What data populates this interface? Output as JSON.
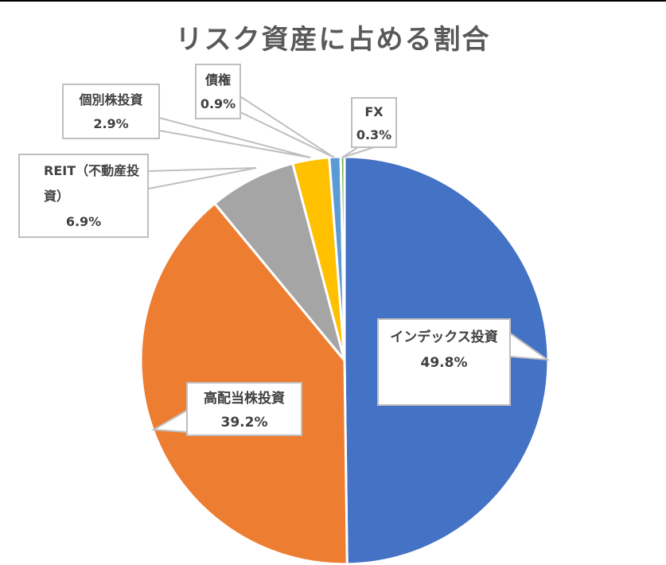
{
  "chart_data": {
    "type": "pie",
    "title": "リスク資産に占める割合",
    "start_angle": "12 o'clock",
    "direction": "clockwise",
    "categories": [
      "インデックス投資",
      "高配当株投資",
      "REIT（不動産投資）",
      "個別株投資",
      "債権",
      "FX"
    ],
    "values": [
      49.8,
      39.2,
      6.9,
      2.9,
      0.9,
      0.3
    ],
    "value_labels": [
      "49.8%",
      "39.2%",
      "6.9%",
      "2.9%",
      "0.9%",
      "0.3%"
    ],
    "colors": [
      "#4472C4",
      "#ED7D31",
      "#A5A5A5",
      "#FFC000",
      "#5B9BD5",
      "#70AD47"
    ],
    "legend": "none",
    "data_labels": "callouts with category name and percentage"
  },
  "labels": {
    "index": {
      "name": "インデックス投資",
      "pct": "49.8%"
    },
    "dividend": {
      "name": "高配当株投資",
      "pct": "39.2%"
    },
    "reit": {
      "name": "REIT（不動産投資）",
      "pct": "6.9%"
    },
    "individual": {
      "name": "個別株投資",
      "pct": "2.9%"
    },
    "bond": {
      "name": "債権",
      "pct": "0.9%"
    },
    "fx": {
      "name": "FX",
      "pct": "0.3%"
    }
  }
}
